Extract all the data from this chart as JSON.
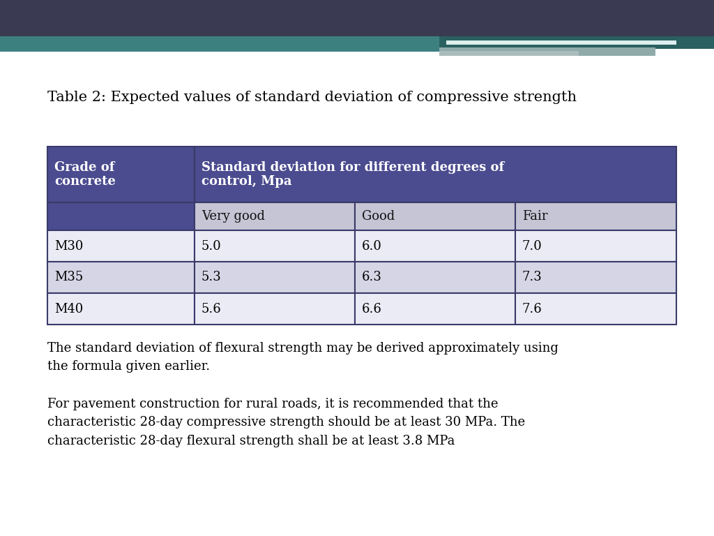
{
  "title": "Table 2: Expected values of standard deviation of compressive strength",
  "header_bg_color": "#4B4B8F",
  "header_text_color": "#FFFFFF",
  "subheader_bg_color": "#C5C5D5",
  "subheader_text_color": "#111111",
  "row_colors": [
    "#EBEBF5",
    "#D5D5E5"
  ],
  "col1_header": "Grade of\nconcrete",
  "col2_header": "Standard deviation for different degrees of\ncontrol, Mpa",
  "subheaders": [
    "Very good",
    "Good",
    "Fair"
  ],
  "grades": [
    "M30",
    "M35",
    "M40"
  ],
  "data": [
    [
      "5.0",
      "6.0",
      "7.0"
    ],
    [
      "5.3",
      "6.3",
      "7.3"
    ],
    [
      "5.6",
      "6.6",
      "7.6"
    ]
  ],
  "footer_text1": "The standard deviation of flexural strength may be derived approximately using\nthe formula given earlier.",
  "footer_text2": "For pavement construction for rural roads, it is recommended that the\ncharacteristic 28-day compressive strength should be at least 30 MPa. The\ncharacteristic 28-day flexural strength shall be at least 3.8 MPa",
  "top_bar_color": "#3A3A52",
  "teal_bar_color": "#3D8080",
  "teal_bar_color2": "#2A6060",
  "teal_bar_light": "#90AAAA",
  "teal_bar_lighter": "#AABBBB",
  "bg_color": "#FFFFFF",
  "table_border_color": "#3A3A6A",
  "font_size_title": 15,
  "font_size_table": 13,
  "font_size_footer": 13
}
